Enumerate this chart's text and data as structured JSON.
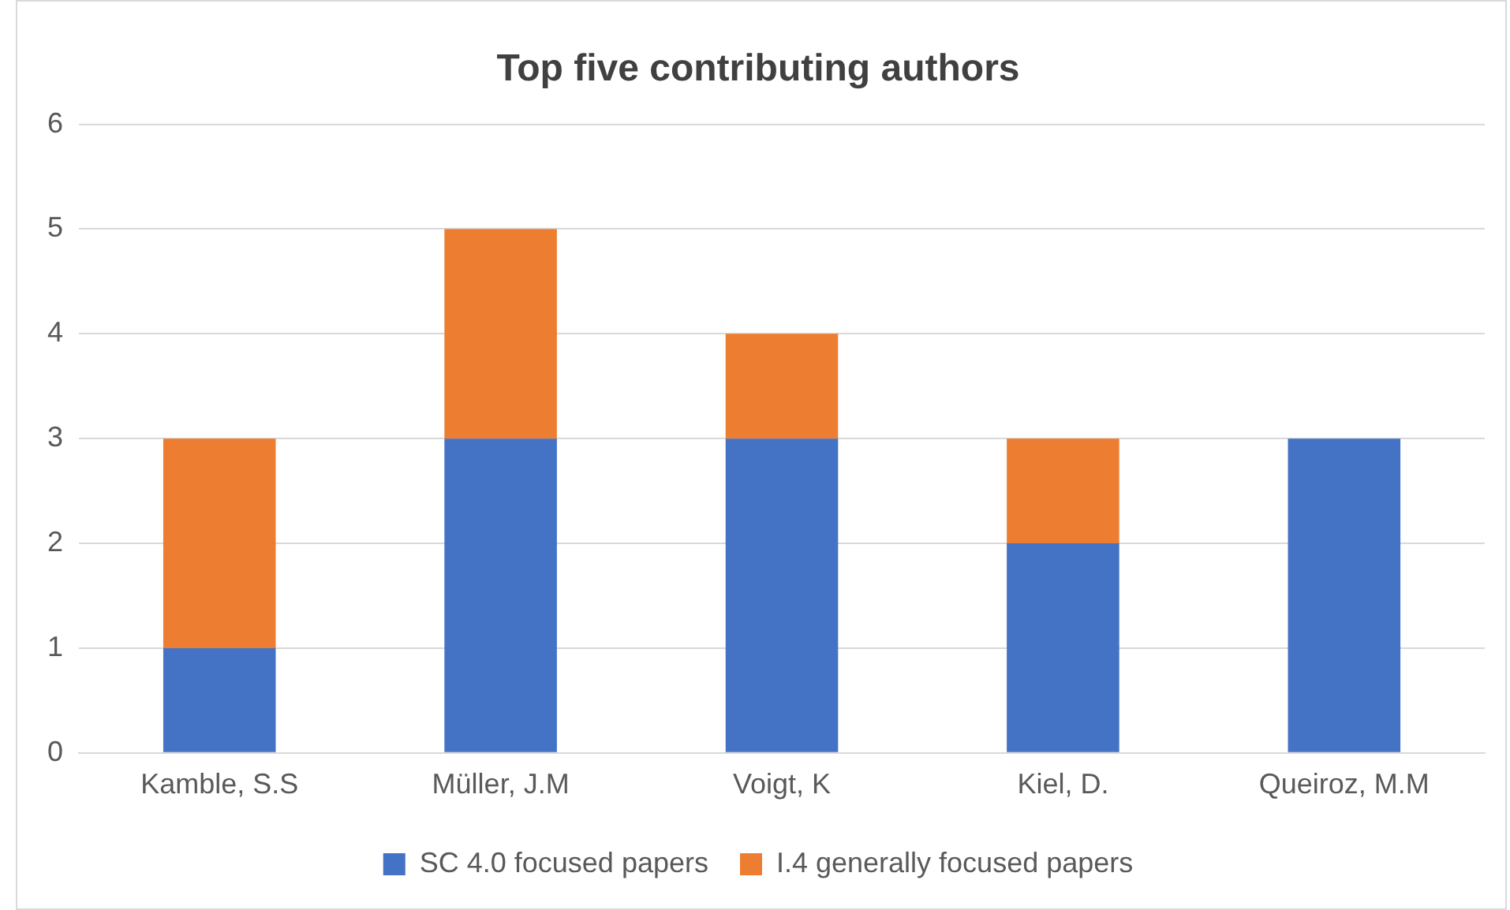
{
  "chart_data": {
    "type": "bar",
    "title": "Top five contributing authors",
    "categories": [
      "Kamble, S.S",
      "Müller, J.M",
      "Voigt, K",
      "Kiel, D.",
      "Queiroz, M.M"
    ],
    "series": [
      {
        "name": "SC 4.0 focused papers",
        "color": "#4472c4",
        "values": [
          1,
          3,
          3,
          2,
          3
        ]
      },
      {
        "name": "I.4 generally focused papers",
        "color": "#ed7d31",
        "values": [
          2,
          2,
          1,
          1,
          0
        ]
      }
    ],
    "stacked": true,
    "ylim": [
      0,
      6
    ],
    "yticks": [
      0,
      1,
      2,
      3,
      4,
      5,
      6
    ],
    "grid": "y",
    "legend": "bottom"
  }
}
